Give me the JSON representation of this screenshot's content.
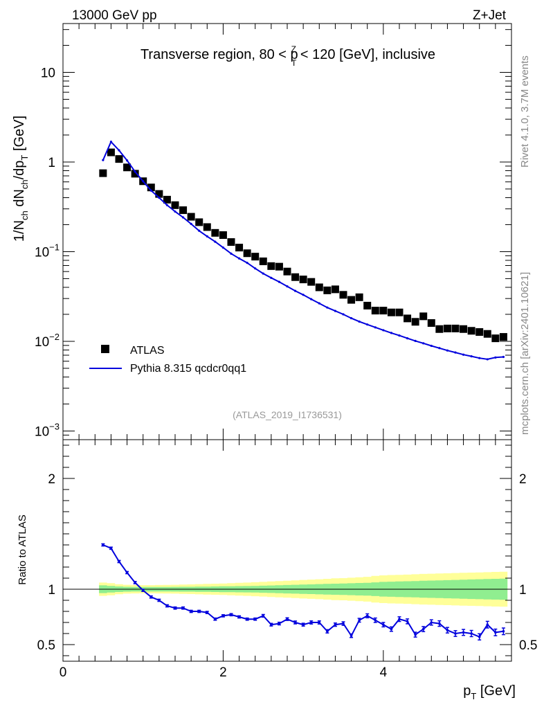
{
  "header": {
    "energy_label": "13000 GeV pp",
    "process_label": "Z+Jet"
  },
  "side_labels": {
    "rivet": "Rivet 4.1.0,  3.7M events",
    "mcplots": "mcplots.cern.ch [arXiv:2401.10621]"
  },
  "chart_data": [
    {
      "type": "scatter",
      "panel": "main",
      "title": "Transverse region, 80 < p",
      "title_sup": "Z",
      "title_sub": "T",
      "title_end": " < 120 [GeV], inclusive",
      "analysis_id": "(ATLAS_2019_I1736531)",
      "ylabel": "1/N",
      "ylabel_parts": [
        "1/N",
        "ch",
        " dN",
        "ch",
        "/dp",
        "T",
        " [GeV]"
      ],
      "yscale": "log",
      "ylim": [
        0.0008,
        35
      ],
      "xlim": [
        0,
        5.6
      ],
      "y_tick_labels": [
        {
          "value": 10,
          "label": "10"
        },
        {
          "value": 1,
          "label": "1"
        },
        {
          "value": 0.1,
          "base": "10",
          "exp": "−1"
        },
        {
          "value": 0.01,
          "base": "10",
          "exp": "−2"
        },
        {
          "value": 0.001,
          "base": "10",
          "exp": "−3"
        }
      ],
      "legend_position": "middle-left",
      "series": [
        {
          "name": "ATLAS",
          "style": "markers",
          "color": "#000000",
          "x": [
            0.5,
            0.6,
            0.7,
            0.8,
            0.9,
            1.0,
            1.1,
            1.2,
            1.3,
            1.4,
            1.5,
            1.6,
            1.7,
            1.8,
            1.9,
            2.0,
            2.1,
            2.2,
            2.3,
            2.4,
            2.5,
            2.6,
            2.7,
            2.8,
            2.9,
            3.0,
            3.1,
            3.2,
            3.3,
            3.4,
            3.5,
            3.6,
            3.7,
            3.8,
            3.9,
            4.0,
            4.1,
            4.2,
            4.3,
            4.4,
            4.5,
            4.6,
            4.7,
            4.8,
            4.9,
            5.0,
            5.1,
            5.2,
            5.3,
            5.4,
            5.5
          ],
          "y": [
            0.75,
            1.28,
            1.08,
            0.87,
            0.74,
            0.61,
            0.52,
            0.44,
            0.38,
            0.33,
            0.29,
            0.245,
            0.213,
            0.188,
            0.162,
            0.153,
            0.128,
            0.111,
            0.096,
            0.088,
            0.078,
            0.069,
            0.068,
            0.06,
            0.052,
            0.049,
            0.046,
            0.04,
            0.037,
            0.038,
            0.033,
            0.029,
            0.031,
            0.025,
            0.022,
            0.022,
            0.021,
            0.021,
            0.018,
            0.0165,
            0.019,
            0.016,
            0.0137,
            0.0139,
            0.0139,
            0.0137,
            0.0131,
            0.0127,
            0.0121,
            0.0108,
            0.0112
          ]
        },
        {
          "name": "Pythia 8.315 qcdcr0qq1",
          "style": "line",
          "color": "#0000dd",
          "x": [
            0.5,
            0.6,
            0.7,
            0.8,
            0.9,
            1.0,
            1.1,
            1.2,
            1.3,
            1.4,
            1.5,
            1.6,
            1.7,
            1.8,
            1.9,
            2.0,
            2.1,
            2.2,
            2.3,
            2.4,
            2.5,
            2.6,
            2.7,
            2.8,
            2.9,
            3.0,
            3.1,
            3.2,
            3.3,
            3.4,
            3.5,
            3.6,
            3.7,
            3.8,
            3.9,
            4.0,
            4.1,
            4.2,
            4.3,
            4.4,
            4.5,
            4.6,
            4.7,
            4.8,
            4.9,
            5.0,
            5.1,
            5.2,
            5.3,
            5.4,
            5.5
          ],
          "y": [
            1.05,
            1.68,
            1.35,
            1.04,
            0.78,
            0.61,
            0.48,
            0.4,
            0.33,
            0.28,
            0.241,
            0.204,
            0.171,
            0.148,
            0.129,
            0.111,
            0.095,
            0.084,
            0.075,
            0.065,
            0.057,
            0.051,
            0.046,
            0.041,
            0.0365,
            0.033,
            0.0295,
            0.0265,
            0.0238,
            0.0218,
            0.02,
            0.0181,
            0.0166,
            0.0154,
            0.0143,
            0.0133,
            0.0124,
            0.0116,
            0.0108,
            0.0101,
            0.0095,
            0.0089,
            0.0084,
            0.0079,
            0.0075,
            0.0071,
            0.0068,
            0.0065,
            0.0063,
            0.0066,
            0.0067
          ]
        }
      ]
    },
    {
      "type": "line",
      "panel": "ratio",
      "ylabel": "Ratio to ATLAS",
      "xlabel": "p",
      "xlabel_sub": "T",
      "xlabel_unit": " [GeV]",
      "xlim": [
        0,
        5.6
      ],
      "ylim": [
        0.35,
        2.35
      ],
      "x_tick_labels": [
        "0",
        "2",
        "4"
      ],
      "x_ticks": [
        0,
        2,
        4
      ],
      "y_tick_labels": [
        "2",
        "1",
        "0.5"
      ],
      "y_ticks": [
        2,
        1,
        0.5
      ],
      "reference_line": 1,
      "band_x": [
        0.45,
        0.55,
        0.65,
        0.75,
        0.85,
        0.95,
        1.05,
        1.15,
        1.25,
        1.35,
        1.45,
        1.55,
        1.65,
        1.75,
        1.85,
        1.95,
        2.05,
        2.15,
        2.25,
        2.35,
        2.45,
        2.55,
        2.65,
        2.75,
        2.85,
        2.95,
        3.05,
        3.15,
        3.25,
        3.35,
        3.45,
        3.55,
        3.65,
        3.75,
        3.85,
        3.95,
        4.05,
        4.15,
        4.25,
        4.35,
        4.45,
        4.55,
        4.65,
        4.75,
        4.85,
        4.95,
        5.05,
        5.15,
        5.25,
        5.35,
        5.45,
        5.55
      ],
      "band_stat_halfwidth": [
        0.035,
        0.03,
        0.025,
        0.022,
        0.02,
        0.02,
        0.02,
        0.02,
        0.02,
        0.021,
        0.022,
        0.022,
        0.023,
        0.024,
        0.025,
        0.026,
        0.027,
        0.028,
        0.029,
        0.03,
        0.032,
        0.034,
        0.036,
        0.038,
        0.04,
        0.042,
        0.044,
        0.046,
        0.048,
        0.05,
        0.052,
        0.054,
        0.056,
        0.058,
        0.062,
        0.066,
        0.068,
        0.07,
        0.072,
        0.074,
        0.076,
        0.078,
        0.08,
        0.082,
        0.084,
        0.086,
        0.088,
        0.09,
        0.092,
        0.094,
        0.095,
        0.096
      ],
      "band_total_halfwidth": [
        0.06,
        0.055,
        0.045,
        0.04,
        0.038,
        0.037,
        0.037,
        0.038,
        0.039,
        0.04,
        0.042,
        0.044,
        0.046,
        0.048,
        0.05,
        0.052,
        0.055,
        0.058,
        0.06,
        0.063,
        0.066,
        0.07,
        0.073,
        0.076,
        0.08,
        0.084,
        0.087,
        0.09,
        0.094,
        0.098,
        0.1,
        0.104,
        0.108,
        0.112,
        0.12,
        0.125,
        0.128,
        0.13,
        0.132,
        0.135,
        0.138,
        0.14,
        0.142,
        0.144,
        0.146,
        0.148,
        0.15,
        0.152,
        0.154,
        0.156,
        0.158,
        0.16
      ],
      "band_colors": {
        "stat": "#90ee90",
        "total": "#ffff99"
      },
      "series": [
        {
          "name": "Pythia 8.315 qcdcr0qq1",
          "color": "#0000dd",
          "x": [
            0.5,
            0.6,
            0.7,
            0.8,
            0.9,
            1.0,
            1.1,
            1.2,
            1.3,
            1.4,
            1.5,
            1.6,
            1.7,
            1.8,
            1.9,
            2.0,
            2.1,
            2.2,
            2.3,
            2.4,
            2.5,
            2.6,
            2.7,
            2.8,
            2.9,
            3.0,
            3.1,
            3.2,
            3.3,
            3.4,
            3.5,
            3.6,
            3.7,
            3.8,
            3.9,
            4.0,
            4.1,
            4.2,
            4.3,
            4.4,
            4.5,
            4.6,
            4.7,
            4.8,
            4.9,
            5.0,
            5.1,
            5.2,
            5.3,
            5.4,
            5.5
          ],
          "y": [
            1.4,
            1.37,
            1.25,
            1.15,
            1.06,
            0.99,
            0.93,
            0.9,
            0.85,
            0.83,
            0.83,
            0.8,
            0.8,
            0.79,
            0.73,
            0.76,
            0.77,
            0.75,
            0.73,
            0.73,
            0.76,
            0.68,
            0.69,
            0.73,
            0.7,
            0.68,
            0.7,
            0.7,
            0.62,
            0.68,
            0.69,
            0.58,
            0.72,
            0.76,
            0.72,
            0.68,
            0.64,
            0.73,
            0.71,
            0.59,
            0.64,
            0.7,
            0.69,
            0.63,
            0.6,
            0.61,
            0.6,
            0.57,
            0.68,
            0.61,
            0.62
          ],
          "err": [
            0.01,
            0.01,
            0.01,
            0.01,
            0.01,
            0.01,
            0.01,
            0.01,
            0.01,
            0.01,
            0.01,
            0.01,
            0.01,
            0.01,
            0.01,
            0.01,
            0.01,
            0.01,
            0.01,
            0.01,
            0.012,
            0.012,
            0.012,
            0.012,
            0.013,
            0.013,
            0.014,
            0.014,
            0.015,
            0.015,
            0.016,
            0.016,
            0.017,
            0.018,
            0.02,
            0.02,
            0.02,
            0.021,
            0.022,
            0.022,
            0.023,
            0.024,
            0.025,
            0.025,
            0.026,
            0.027,
            0.028,
            0.028,
            0.03,
            0.03,
            0.03
          ]
        }
      ]
    }
  ]
}
